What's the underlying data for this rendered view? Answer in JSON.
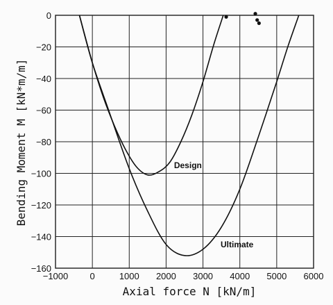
{
  "chart_data": {
    "type": "line",
    "title": "",
    "xlabel": "Axial force N [kN/m]",
    "ylabel": "Bending Moment M [kN*m/m]",
    "xlim": [
      -1000,
      6000
    ],
    "ylim": [
      -160,
      0
    ],
    "xticks": [
      -1000,
      0,
      1000,
      2000,
      3000,
      4000,
      5000,
      6000
    ],
    "yticks": [
      0,
      -20,
      -40,
      -60,
      -80,
      -100,
      -120,
      -140,
      -160
    ],
    "grid": true,
    "series": [
      {
        "name": "Design",
        "x": [
          -350,
          0,
          300,
          600,
          900,
          1200,
          1500,
          1800,
          2100,
          2400,
          2700,
          3000,
          3300,
          3550
        ],
        "y": [
          0,
          -30,
          -52,
          -70,
          -85,
          -96,
          -101,
          -99,
          -93,
          -80,
          -63,
          -42,
          -18,
          0
        ]
      },
      {
        "name": "Ultimate",
        "x": [
          -350,
          0,
          500,
          1000,
          1500,
          2000,
          2500,
          3000,
          3500,
          4000,
          4500,
          5000,
          5300,
          5600
        ],
        "y": [
          0,
          -30,
          -64,
          -97,
          -124,
          -145,
          -152,
          -148,
          -134,
          -110,
          -77,
          -42,
          -20,
          0
        ]
      }
    ],
    "points": [
      {
        "x": 3630,
        "y": -1
      },
      {
        "x": 4420,
        "y": 1
      },
      {
        "x": 4470,
        "y": -3
      },
      {
        "x": 4520,
        "y": -5
      }
    ]
  }
}
